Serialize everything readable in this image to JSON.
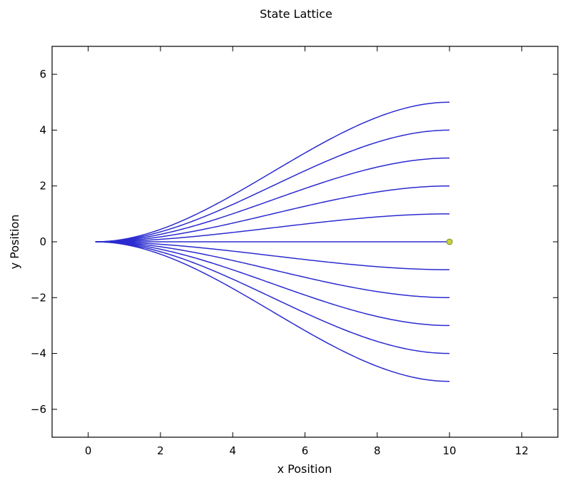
{
  "chart_data": {
    "type": "line",
    "title": "State Lattice",
    "xlabel": "x Position",
    "ylabel": "y Position",
    "xlim": [
      -1,
      13
    ],
    "ylim": [
      -7,
      7
    ],
    "xticks": [
      0,
      2,
      4,
      6,
      8,
      10,
      12
    ],
    "yticks": [
      -6,
      -4,
      -2,
      0,
      2,
      4,
      6
    ],
    "xtick_labels": [
      "0",
      "2",
      "4",
      "6",
      "8",
      "10",
      "12"
    ],
    "ytick_labels": [
      "−6",
      "−4",
      "−2",
      "0",
      "2",
      "4",
      "6"
    ],
    "grid": false,
    "line_color": "#2b2bd0",
    "curve_start": [
      0.2,
      0
    ],
    "curve_end_x": 10,
    "end_y_values": [
      5,
      4,
      3,
      2,
      1,
      0,
      -1,
      -2,
      -3,
      -4,
      -5
    ],
    "goal_point": {
      "x": 10,
      "y": 0,
      "color": "#c8d23a"
    }
  }
}
